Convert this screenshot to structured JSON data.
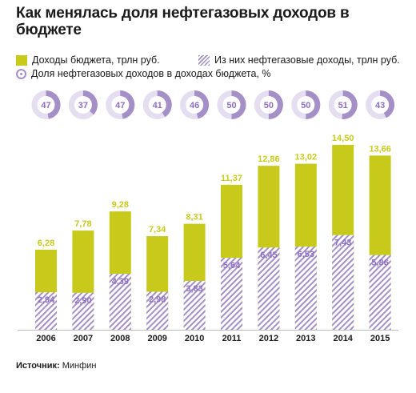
{
  "title": "Как менялась доля нефтегазовых доходов в бюджете",
  "legend": {
    "revenue": "Доходы бюджета, трлн руб.",
    "oilgas": "Из них нефтегазовые доходы, трлн руб.",
    "share": "Доля нефтегазовых доходов в доходах бюджета, %"
  },
  "source_label": "Источник:",
  "source_value": "Минфин",
  "colors": {
    "revenue": "#c8ca1b",
    "revenue_text": "#c8ca1b",
    "oilgas": "#a58fc7",
    "oilgas_text": "#8e6fbf",
    "donut_bg": "#ffffff",
    "donut_ring": "#e4def0"
  },
  "chart_data": {
    "type": "bar",
    "title": "Как менялась доля нефтегазовых доходов в бюджете",
    "categories": [
      "2006",
      "2007",
      "2008",
      "2009",
      "2010",
      "2011",
      "2012",
      "2013",
      "2014",
      "2015"
    ],
    "series": [
      {
        "name": "Доходы бюджета, трлн руб.",
        "values": [
          6.28,
          7.78,
          9.28,
          7.34,
          8.31,
          11.37,
          12.86,
          13.02,
          14.5,
          13.66
        ]
      },
      {
        "name": "Из них нефтегазовые доходы, трлн руб.",
        "values": [
          2.94,
          2.9,
          4.39,
          2.98,
          3.83,
          5.64,
          6.45,
          6.53,
          7.43,
          5.86
        ]
      },
      {
        "name": "Доля нефтегазовых доходов в доходах бюджета, %",
        "values": [
          47,
          37,
          47,
          41,
          46,
          50,
          50,
          50,
          51,
          43
        ]
      }
    ],
    "revenue_labels": [
      "6,28",
      "7,78",
      "9,28",
      "7,34",
      "8,31",
      "11,37",
      "12,86",
      "13,02",
      "14,50",
      "13,66"
    ],
    "oilgas_labels": [
      "2,94",
      "2,90",
      "4,39",
      "2,98",
      "3,83",
      "5,64",
      "6,45",
      "6,53",
      "7,43",
      "5,86"
    ],
    "share_labels": [
      "47",
      "37",
      "47",
      "41",
      "46",
      "50",
      "50",
      "50",
      "51",
      "43"
    ],
    "ylim": [
      0,
      14.5
    ],
    "xlabel": "",
    "ylabel": "",
    "grid": false
  }
}
